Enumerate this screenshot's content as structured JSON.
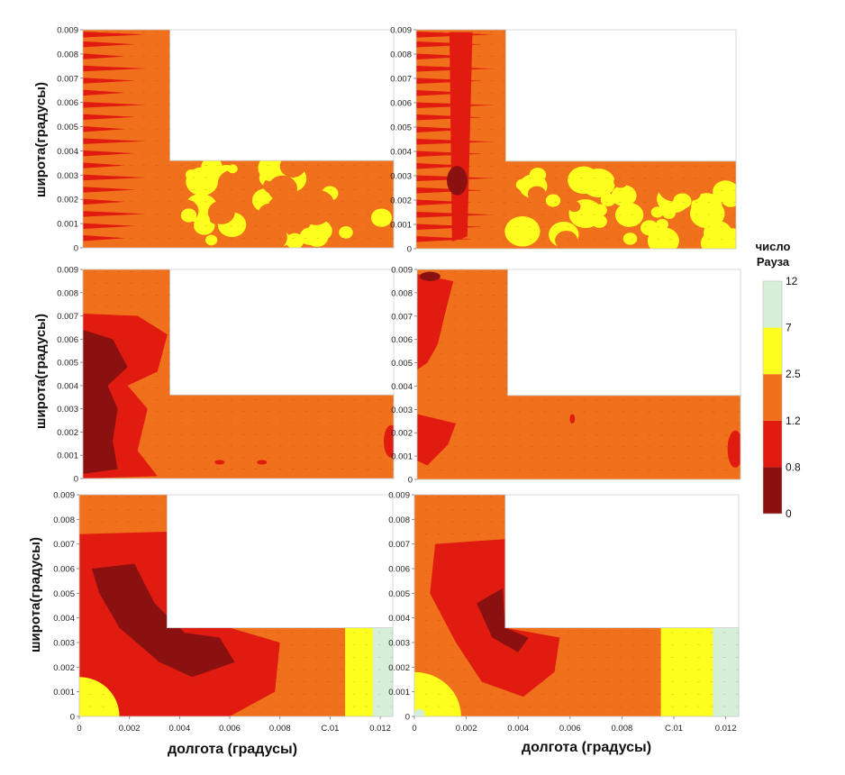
{
  "figure": {
    "y_axis_title": "широта(градусы)",
    "x_axis_title": "долгота (градусы)"
  },
  "colorbar": {
    "title_line1": "число",
    "title_line2": "Рауза",
    "levels": [
      "0",
      "0.8",
      "1.2",
      "2.5",
      "7",
      "12"
    ],
    "bands": [
      {
        "from": "0",
        "to": "0.8",
        "color": "#8b1010"
      },
      {
        "from": "0.8",
        "to": "1.2",
        "color": "#e21b10"
      },
      {
        "from": "1.2",
        "to": "2.5",
        "color": "#f0701c"
      },
      {
        "from": "2.5",
        "to": "7",
        "color": "#ffff1e"
      },
      {
        "from": "7",
        "to": "12",
        "color": "#d6f0d8"
      }
    ]
  },
  "chart_data": {
    "type": "heatmap",
    "grid": "3 rows x 2 columns of L-shaped contour maps",
    "xlim": [
      0,
      0.0125
    ],
    "ylim": [
      0,
      0.009
    ],
    "x_ticks": [
      "0",
      "0.002",
      "0.004",
      "0.006",
      "0.008",
      "0.01",
      "0.012"
    ],
    "y_ticks": [
      "0",
      "0.001",
      "0.002",
      "0.003",
      "0.004",
      "0.005",
      "0.006",
      "0.007",
      "0.008",
      "0.009"
    ],
    "x_tick_labels_shown": [
      "0",
      "0.002",
      "0.004",
      "0.006",
      "0.008",
      "C.01",
      "0.012"
    ],
    "domain_shape": "L-shape: vertical channel x 0-0.0035 for y 0-0.009, horizontal channel y 0-0.0036 for x 0-0.0125",
    "panels": [
      {
        "row": 1,
        "col": 1,
        "dominant_band": "1.2-2.5",
        "notes": "horizontal channel mixed with 2.5-7 patches; red streaks along vertical channel"
      },
      {
        "row": 1,
        "col": 2,
        "dominant_band": "1.2-2.5",
        "notes": "horizontal channel largely 2.5-7; red streaks in vertical channel"
      },
      {
        "row": 2,
        "col": 1,
        "dominant_band": "1.2-2.5",
        "notes": "0-0.8 region along left wall in vertical channel"
      },
      {
        "row": 2,
        "col": 2,
        "dominant_band": "1.2-2.5",
        "notes": "small red patches near left wall"
      },
      {
        "row": 3,
        "col": 1,
        "dominant_band": "0.8-1.2",
        "notes": "dark 0-0.8 wake near corner; 2.5-7 and 7-12 strip at outlet; 2.5-7 near origin"
      },
      {
        "row": 3,
        "col": 2,
        "dominant_band": "1.2-2.5",
        "notes": "0-0.8 wake near inner corner; 2.5-7 zone at outlet; 2.5-7 near origin"
      }
    ]
  }
}
